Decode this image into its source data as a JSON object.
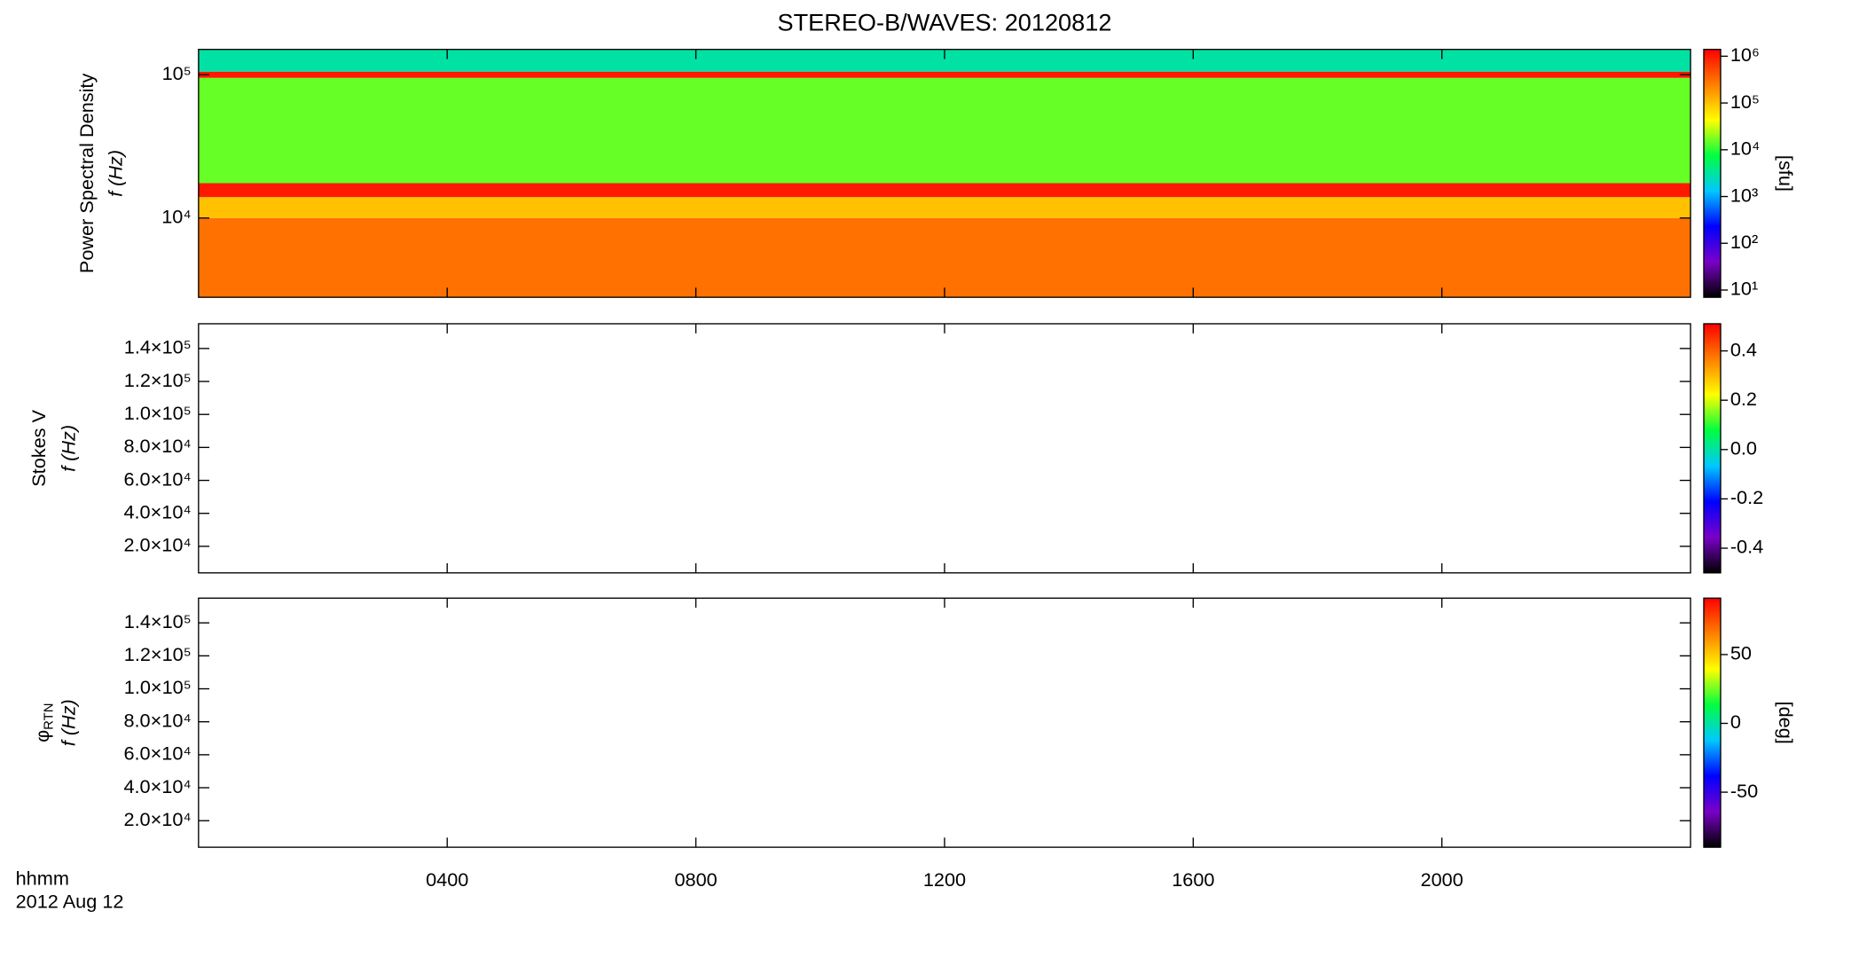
{
  "chart_data": [
    {
      "type": "spectrogram",
      "title": "STEREO-B/WAVES: 20120812",
      "y_label": "Power Spectral Density",
      "y_unit": "f (Hz)",
      "log_y": true,
      "ylim": [
        2800,
        150000
      ],
      "yticks": [
        {
          "value": 10000,
          "label": "10⁴"
        },
        {
          "value": 100000,
          "label": "10⁵"
        }
      ],
      "xlim": [
        0,
        24
      ],
      "bands": [
        {
          "fmin": 2800,
          "fmax": 10000,
          "value": 300000
        },
        {
          "fmin": 10000,
          "fmax": 14000,
          "value": 100000
        },
        {
          "fmin": 14000,
          "fmax": 17500,
          "value": 1000000
        },
        {
          "fmin": 17500,
          "fmax": 95000,
          "value": 15000
        },
        {
          "fmin": 95000,
          "fmax": 105000,
          "value": 1000000
        },
        {
          "fmin": 105000,
          "fmax": 150000,
          "value": 3000
        }
      ],
      "colorbar_label": "[sfu]",
      "colorbar_log": true,
      "clim": [
        7,
        1400000
      ],
      "cticks": [
        {
          "value": 10,
          "label": "10¹"
        },
        {
          "value": 100,
          "label": "10²"
        },
        {
          "value": 1000,
          "label": "10³"
        },
        {
          "value": 10000,
          "label": "10⁴"
        },
        {
          "value": 100000,
          "label": "10⁵"
        },
        {
          "value": 1000000,
          "label": "10⁶"
        }
      ]
    },
    {
      "type": "spectrogram",
      "y_label": "Stokes V",
      "y_unit": "f (Hz)",
      "log_y": false,
      "ylim": [
        3900,
        155000
      ],
      "yticks": [
        {
          "value": 20000,
          "label": "2.0×10⁴"
        },
        {
          "value": 40000,
          "label": "4.0×10⁴"
        },
        {
          "value": 60000,
          "label": "6.0×10⁴"
        },
        {
          "value": 80000,
          "label": "8.0×10⁴"
        },
        {
          "value": 100000,
          "label": "1.0×10⁵"
        },
        {
          "value": 120000,
          "label": "1.2×10⁵"
        },
        {
          "value": 140000,
          "label": "1.4×10⁵"
        }
      ],
      "xlim": [
        0,
        24
      ],
      "bands": [],
      "colorbar_log": false,
      "clim": [
        -0.5,
        0.51
      ],
      "cticks": [
        -0.4,
        -0.2,
        {
          "value": 0,
          "label": "0.0"
        },
        0.2,
        0.4
      ]
    },
    {
      "type": "spectrogram",
      "y_label": "φ",
      "y_label_sub": "RTN",
      "y_unit": "f (Hz)",
      "log_y": false,
      "ylim": [
        3900,
        155000
      ],
      "yticks": [
        {
          "value": 20000,
          "label": "2.0×10⁴"
        },
        {
          "value": 40000,
          "label": "4.0×10⁴"
        },
        {
          "value": 60000,
          "label": "6.0×10⁴"
        },
        {
          "value": 80000,
          "label": "8.0×10⁴"
        },
        {
          "value": 100000,
          "label": "1.0×10⁵"
        },
        {
          "value": 120000,
          "label": "1.2×10⁵"
        },
        {
          "value": 140000,
          "label": "1.4×10⁵"
        }
      ],
      "xlim": [
        0,
        24
      ],
      "bands": [],
      "xticks": [
        {
          "value": 4,
          "label": "0400"
        },
        {
          "value": 8,
          "label": "0800"
        },
        {
          "value": 12,
          "label": "1200"
        },
        {
          "value": 16,
          "label": "1600"
        },
        {
          "value": 20,
          "label": "2000"
        }
      ],
      "x_label": "hhmm",
      "date_label": "2012 Aug 12",
      "colorbar_label": "[deg]",
      "colorbar_log": false,
      "clim": [
        -90,
        91
      ],
      "cticks": [
        -50,
        0,
        50
      ]
    }
  ],
  "colormap": [
    "#000000",
    "#7a00c8",
    "#0000ff",
    "#00c8ff",
    "#00ff40",
    "#ffff00",
    "#ff8000",
    "#ff0000"
  ]
}
